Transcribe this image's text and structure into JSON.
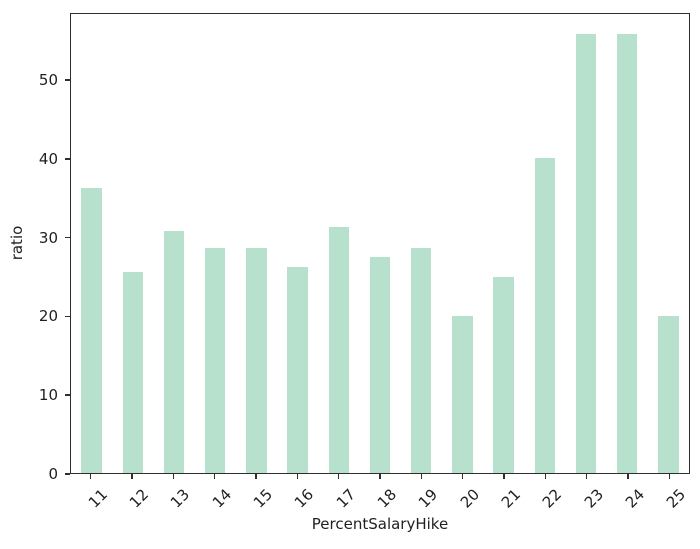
{
  "chart_data": {
    "type": "bar",
    "xlabel": "PercentSalaryHike",
    "ylabel": "ratio",
    "categories": [
      "11",
      "12",
      "13",
      "14",
      "15",
      "16",
      "17",
      "18",
      "19",
      "20",
      "21",
      "22",
      "23",
      "24",
      "25"
    ],
    "values": [
      36.3,
      25.6,
      30.8,
      28.7,
      28.7,
      26.2,
      31.3,
      27.5,
      28.7,
      20.0,
      25.0,
      40.1,
      56.0,
      56.0,
      20.0
    ],
    "yticks": [
      0,
      10,
      20,
      30,
      40,
      50
    ],
    "ylim": [
      0,
      58.5
    ],
    "grid": false,
    "legend_position": "none",
    "x_tick_rotation_deg": 45,
    "colors": {
      "bar": "#b7e1cd",
      "spine": "#2f2f2f",
      "text": "#1f1f1f",
      "background": "#ffffff"
    }
  }
}
